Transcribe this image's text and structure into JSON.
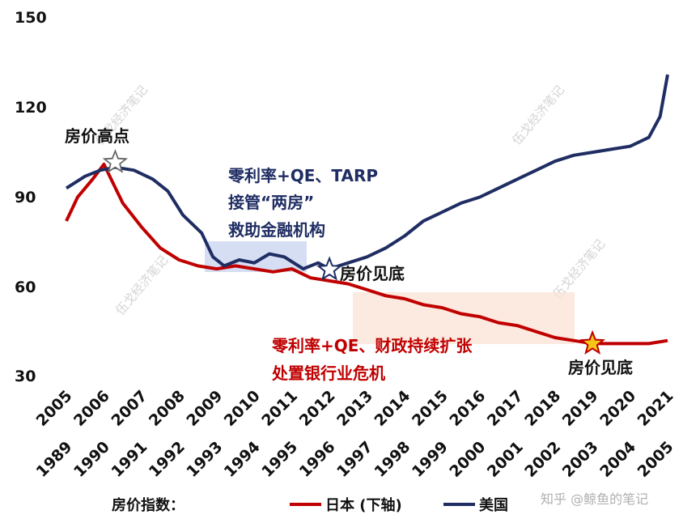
{
  "chart_data": {
    "type": "line",
    "title": "",
    "ylim": [
      30,
      150
    ],
    "yticks": [
      "150",
      "120",
      "90",
      "60",
      "30"
    ],
    "x_top_axis": [
      "2005",
      "2006",
      "2007",
      "2008",
      "2009",
      "2010",
      "2011",
      "2012",
      "2013",
      "2014",
      "2015",
      "2016",
      "2017",
      "2018",
      "2019",
      "2020",
      "2021"
    ],
    "x_bottom_axis": [
      "1989",
      "1990",
      "1991",
      "1992",
      "1993",
      "1994",
      "1995",
      "1996",
      "1997",
      "1998",
      "1999",
      "2000",
      "2001",
      "2002",
      "2003",
      "2004",
      "2005"
    ],
    "series": [
      {
        "name": "美国",
        "color": "#1f2d63",
        "axis": "top",
        "x": [
          2005.0,
          2005.5,
          2005.9,
          2006.3,
          2006.8,
          2007.3,
          2007.7,
          2008.1,
          2008.6,
          2008.9,
          2009.2,
          2009.6,
          2010.0,
          2010.4,
          2010.8,
          2011.3,
          2011.7,
          2012.0,
          2012.5,
          2013.0,
          2013.5,
          2014.0,
          2014.5,
          2015.0,
          2015.5,
          2016.0,
          2016.5,
          2017.0,
          2017.5,
          2018.0,
          2018.5,
          2019.0,
          2019.5,
          2020.0,
          2020.5,
          2020.8,
          2021.0
        ],
        "values": [
          93,
          97,
          99,
          100,
          99,
          96,
          92,
          84,
          78,
          70,
          67,
          69,
          68,
          71,
          70,
          66,
          68,
          66,
          68,
          70,
          73,
          77,
          82,
          85,
          88,
          90,
          93,
          96,
          99,
          102,
          104,
          105,
          106,
          107,
          110,
          117,
          131
        ]
      },
      {
        "name": "日本 (下轴)",
        "color": "#c00000",
        "axis": "bottom",
        "x": [
          1989.0,
          1989.3,
          1989.7,
          1990.0,
          1990.5,
          1991.0,
          1991.5,
          1992.0,
          1992.5,
          1993.0,
          1993.5,
          1994.0,
          1994.5,
          1995.0,
          1995.5,
          1996.0,
          1996.5,
          1997.0,
          1997.5,
          1998.0,
          1998.5,
          1999.0,
          1999.5,
          2000.0,
          2000.5,
          2001.0,
          2001.5,
          2002.0,
          2002.5,
          2003.0,
          2003.5,
          2004.0,
          2004.5,
          2005.0
        ],
        "values": [
          82,
          90,
          96,
          101,
          88,
          80,
          73,
          69,
          67,
          66,
          67,
          66,
          65,
          66,
          63,
          62,
          61,
          59,
          57,
          56,
          54,
          53,
          51,
          50,
          48,
          47,
          45,
          43,
          42,
          41,
          41,
          41,
          41,
          42
        ]
      }
    ],
    "annotations": {
      "peak": "房价高点",
      "us_policy": [
        "零利率+QE、TARP",
        "接管“两房”",
        "救助金融机构"
      ],
      "us_bottom": "房价见底",
      "jp_policy": [
        "零利率+QE、财政持续扩张",
        "处置银行业危机"
      ],
      "jp_bottom": "房价见底"
    },
    "legend": {
      "prefix": "房价指数：",
      "japan": "日本 (下轴)",
      "us": "美国"
    },
    "watermark": [
      "伍戈经济笔记",
      "知乎 @鲸鱼的笔记"
    ]
  }
}
